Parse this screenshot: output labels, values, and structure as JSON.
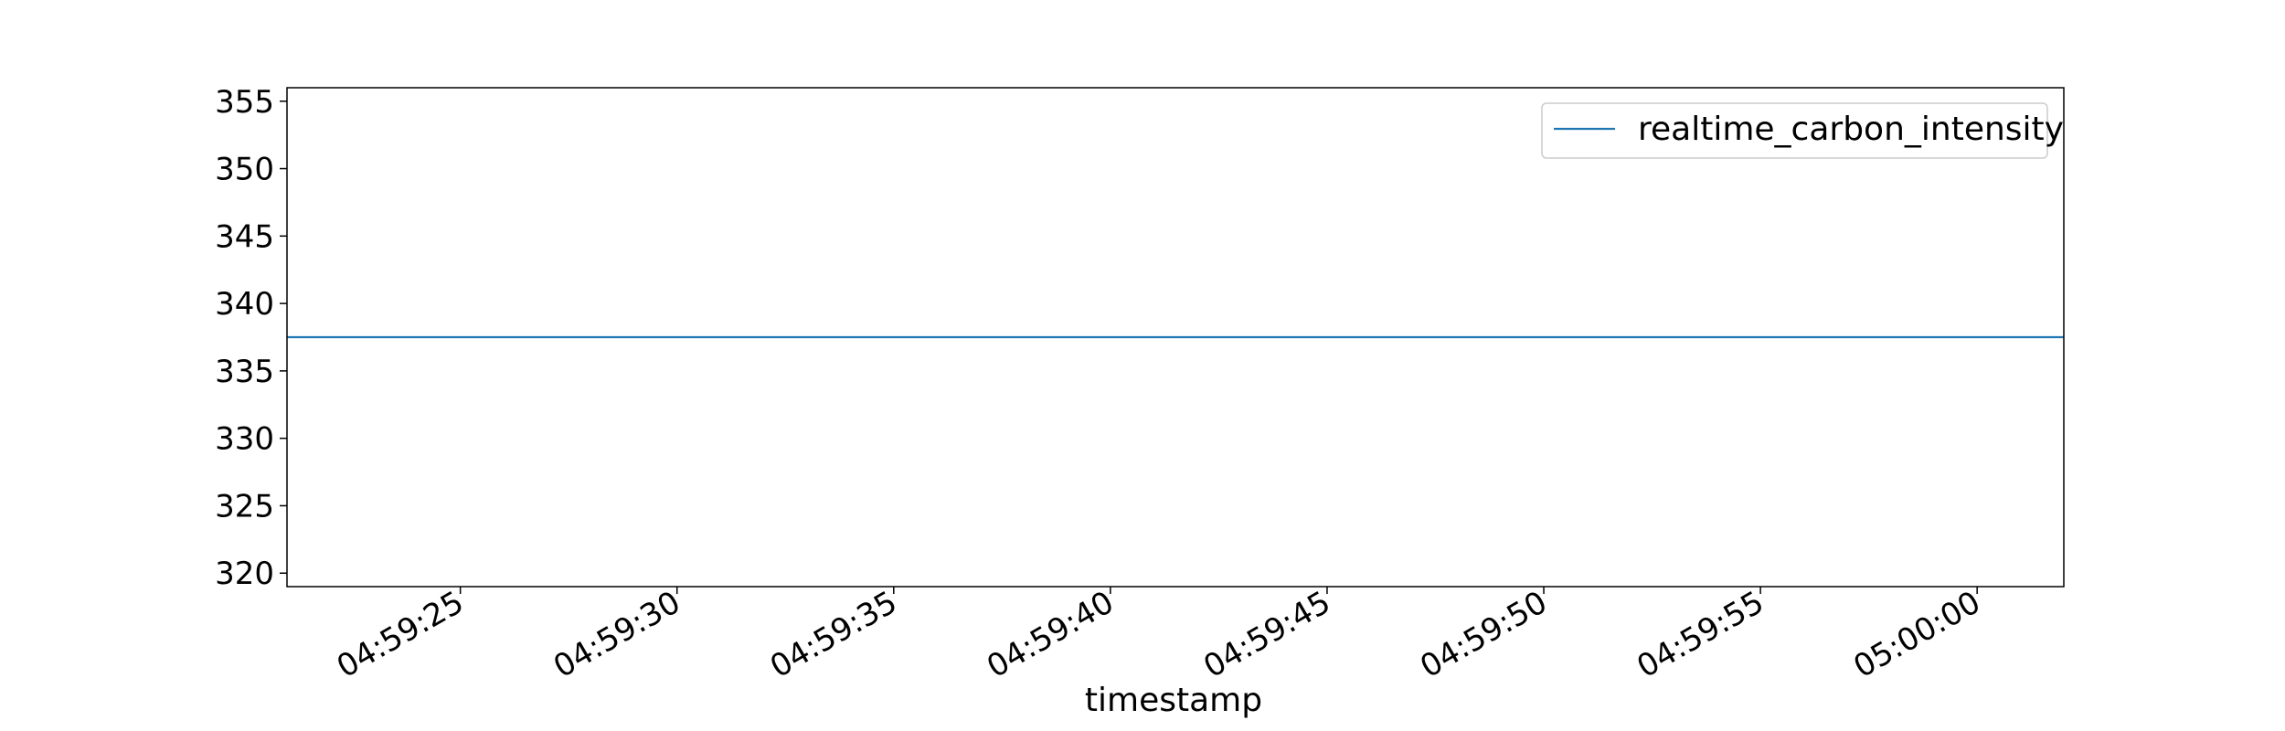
{
  "chart_data": {
    "type": "line",
    "title": "",
    "xlabel": "timestamp",
    "ylabel": "",
    "x": [
      "04:59:21",
      "05:00:02"
    ],
    "series": [
      {
        "name": "realtime_carbon_intensity",
        "values": [
          337.5,
          337.5
        ],
        "color": "#1f77b4"
      }
    ],
    "xlim": [
      "04:59:21",
      "05:00:02"
    ],
    "ylim": [
      319,
      356
    ],
    "xticks": [
      "04:59:25",
      "04:59:30",
      "04:59:35",
      "04:59:40",
      "04:59:45",
      "04:59:50",
      "04:59:55",
      "05:00:00"
    ],
    "yticks": [
      320,
      325,
      330,
      335,
      340,
      345,
      350,
      355
    ],
    "grid": false,
    "legend": "top-right"
  }
}
